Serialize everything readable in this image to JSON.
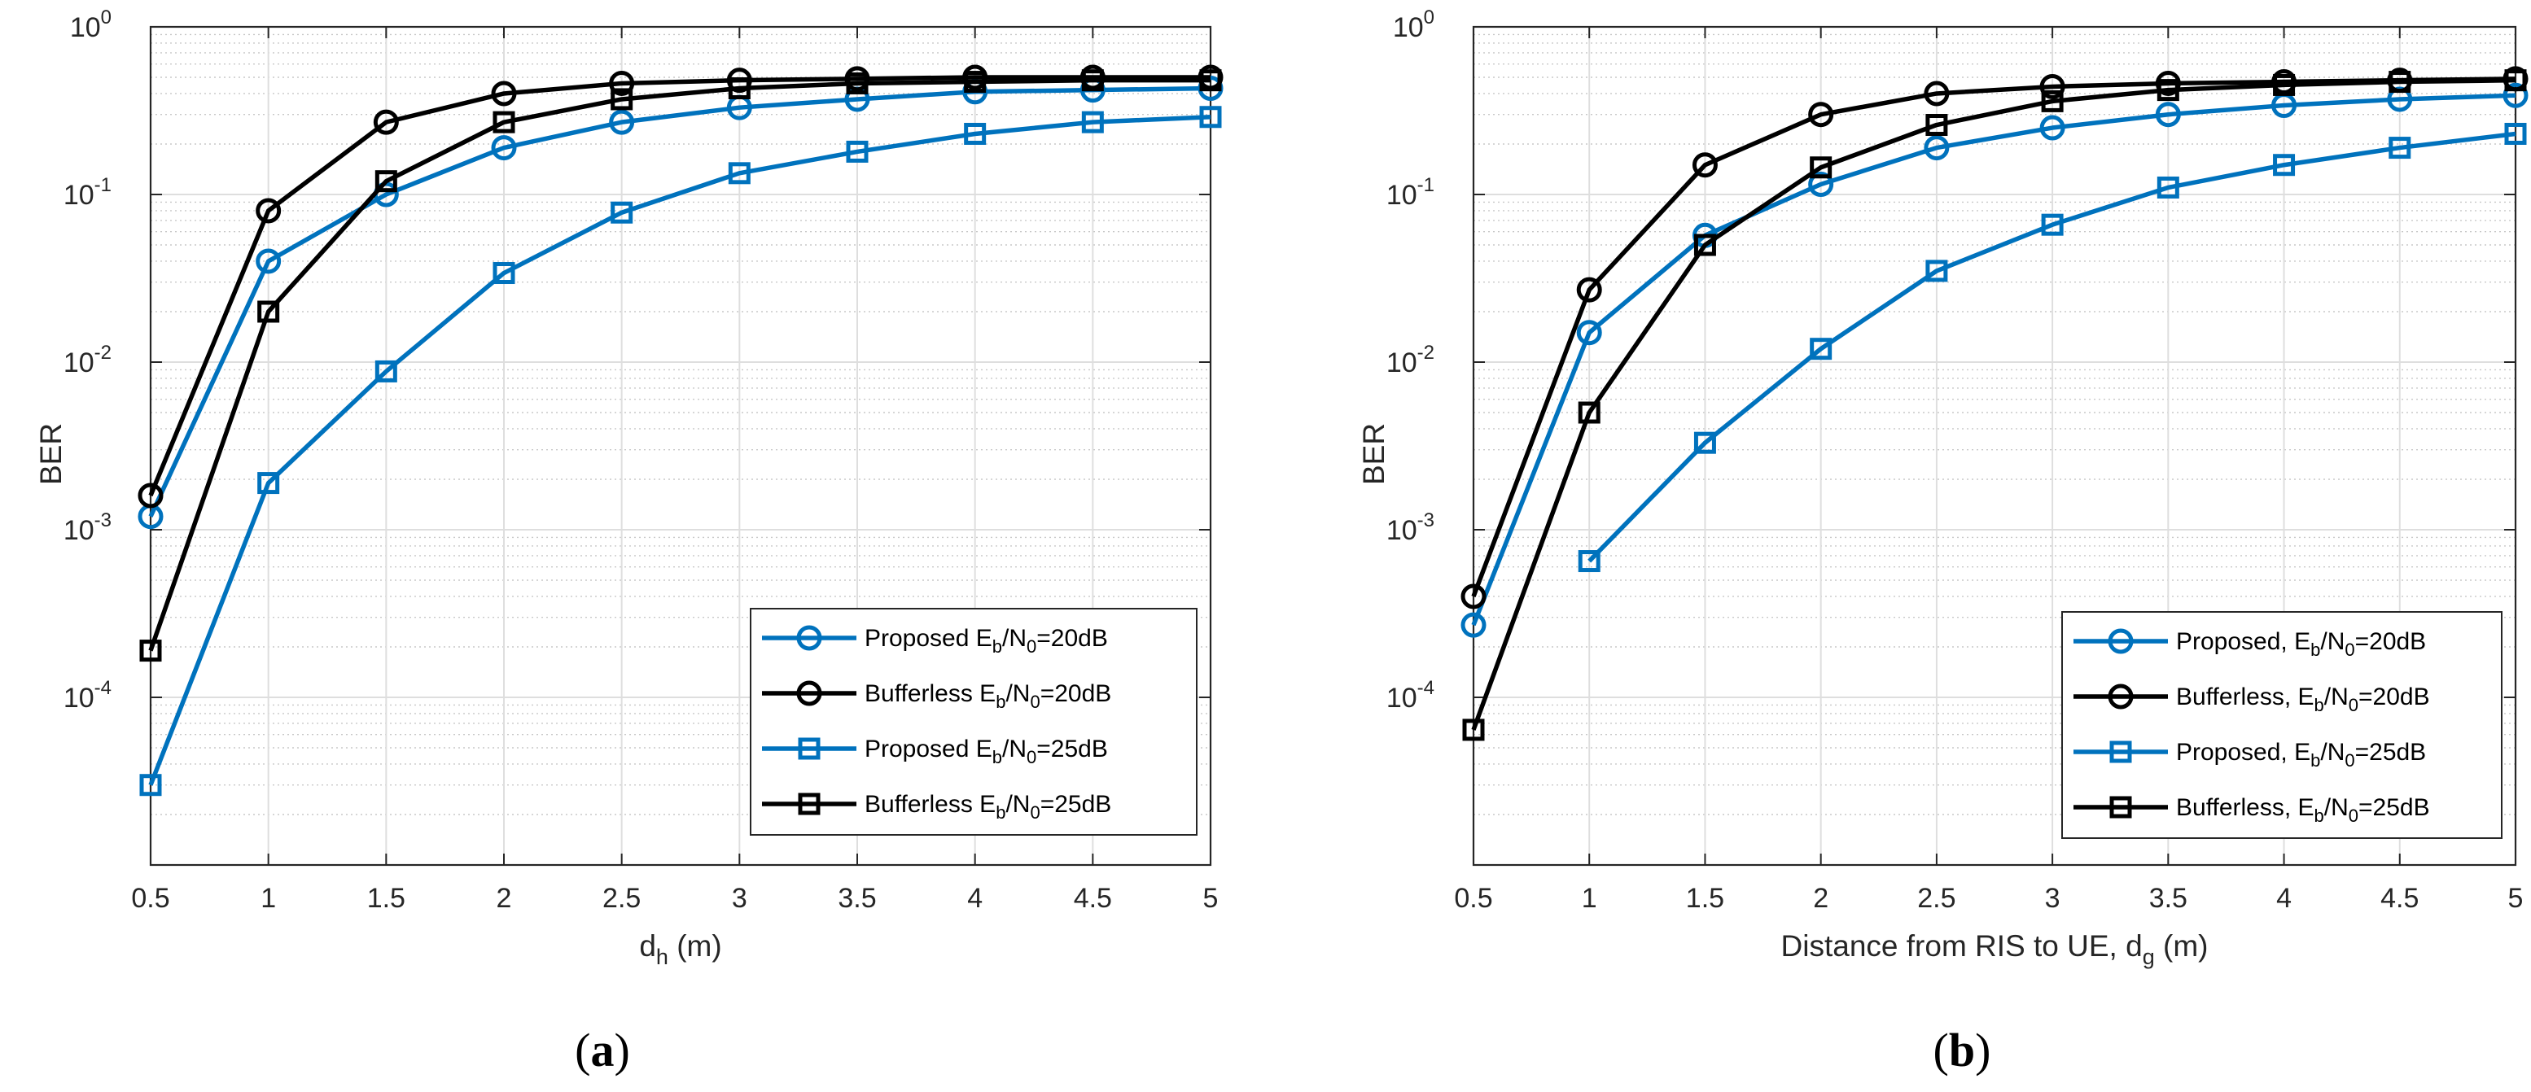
{
  "chart_data": [
    {
      "type": "line",
      "panel_caption_open": "(",
      "panel_caption": "a",
      "panel_caption_close": ")",
      "xlabel": "d",
      "xlabel_sub": "h",
      "xlabel_suffix": " (m)",
      "ylabel": "BER",
      "yscale": "log",
      "ylim": [
        1e-05,
        1
      ],
      "xlim": [
        0.5,
        5
      ],
      "grid": true,
      "legend_location": "bottom-right",
      "x": [
        0.5,
        1,
        1.5,
        2,
        2.5,
        3,
        3.5,
        4,
        4.5,
        5
      ],
      "x_tick_labels": [
        "0.5",
        "1",
        "1.5",
        "2",
        "2.5",
        "3",
        "3.5",
        "4",
        "4.5",
        "5"
      ],
      "y_tick_labels": [
        {
          "base": "10",
          "exp": "-4"
        },
        {
          "base": "10",
          "exp": "-3"
        },
        {
          "base": "10",
          "exp": "-2"
        },
        {
          "base": "10",
          "exp": "-1"
        },
        {
          "base": "10",
          "exp": "0"
        }
      ],
      "series": [
        {
          "name": "Proposed E_b/N_0=20dB",
          "legend_prefix": "Proposed E",
          "legend_mid": "/N",
          "legend_suffix": "=20dB",
          "color": "#0072BD",
          "marker": "circle",
          "values": [
            0.0012,
            0.04,
            0.1,
            0.19,
            0.27,
            0.33,
            0.37,
            0.41,
            0.42,
            0.43
          ]
        },
        {
          "name": "Bufferless E_b/N_0=20dB",
          "legend_prefix": "Bufferless E",
          "legend_mid": "/N",
          "legend_suffix": "=20dB",
          "color": "#000000",
          "marker": "circle",
          "values": [
            0.0016,
            0.08,
            0.27,
            0.4,
            0.46,
            0.48,
            0.49,
            0.5,
            0.5,
            0.5
          ]
        },
        {
          "name": "Proposed E_b/N_0=25dB",
          "legend_prefix": "Proposed E",
          "legend_mid": "/N",
          "legend_suffix": "=25dB",
          "color": "#0072BD",
          "marker": "square",
          "values": [
            3e-05,
            0.0019,
            0.0088,
            0.034,
            0.078,
            0.134,
            0.18,
            0.23,
            0.27,
            0.29
          ]
        },
        {
          "name": "Bufferless E_b/N_0=25dB",
          "legend_prefix": "Bufferless E",
          "legend_mid": "/N",
          "legend_suffix": "=25dB",
          "color": "#000000",
          "marker": "square",
          "values": [
            0.00019,
            0.02,
            0.12,
            0.27,
            0.37,
            0.43,
            0.46,
            0.47,
            0.48,
            0.48
          ]
        }
      ]
    },
    {
      "type": "line",
      "panel_caption_open": "(",
      "panel_caption": "b",
      "panel_caption_close": ")",
      "xlabel": "Distance from RIS to UE, d",
      "xlabel_sub": "g",
      "xlabel_suffix": " (m)",
      "ylabel": "BER",
      "yscale": "log",
      "ylim": [
        1e-05,
        1
      ],
      "xlim": [
        0.5,
        5
      ],
      "grid": true,
      "legend_location": "bottom-right",
      "x": [
        0.5,
        1,
        1.5,
        2,
        2.5,
        3,
        3.5,
        4,
        4.5,
        5
      ],
      "x_tick_labels": [
        "0.5",
        "1",
        "1.5",
        "2",
        "2.5",
        "3",
        "3.5",
        "4",
        "4.5",
        "5"
      ],
      "y_tick_labels": [
        {
          "base": "10",
          "exp": "-4"
        },
        {
          "base": "10",
          "exp": "-3"
        },
        {
          "base": "10",
          "exp": "-2"
        },
        {
          "base": "10",
          "exp": "-1"
        },
        {
          "base": "10",
          "exp": "0"
        }
      ],
      "series": [
        {
          "name": "Proposed, E_b/N_0=20dB",
          "legend_prefix": "Proposed, E",
          "legend_mid": "/N",
          "legend_suffix": "=20dB",
          "color": "#0072BD",
          "marker": "circle",
          "values": [
            0.00027,
            0.015,
            0.057,
            0.115,
            0.19,
            0.25,
            0.3,
            0.34,
            0.37,
            0.39
          ]
        },
        {
          "name": "Bufferless, E_b/N_0=20dB",
          "legend_prefix": "Bufferless, E",
          "legend_mid": "/N",
          "legend_suffix": "=20dB",
          "color": "#000000",
          "marker": "circle",
          "values": [
            0.0004,
            0.027,
            0.15,
            0.3,
            0.4,
            0.44,
            0.46,
            0.47,
            0.48,
            0.49
          ]
        },
        {
          "name": "Proposed, E_b/N_0=25dB",
          "legend_prefix": "Proposed, E",
          "legend_mid": "/N",
          "legend_suffix": "=25dB",
          "color": "#0072BD",
          "marker": "square",
          "values": [
            null,
            0.00065,
            0.0033,
            0.012,
            0.035,
            0.066,
            0.11,
            0.15,
            0.19,
            0.23
          ]
        },
        {
          "name": "Bufferless, E_b/N_0=25dB",
          "legend_prefix": "Bufferless, E",
          "legend_mid": "/N",
          "legend_suffix": "=25dB",
          "color": "#000000",
          "marker": "square",
          "values": [
            6.4e-05,
            0.005,
            0.05,
            0.145,
            0.26,
            0.36,
            0.42,
            0.45,
            0.47,
            0.48
          ]
        }
      ]
    }
  ]
}
